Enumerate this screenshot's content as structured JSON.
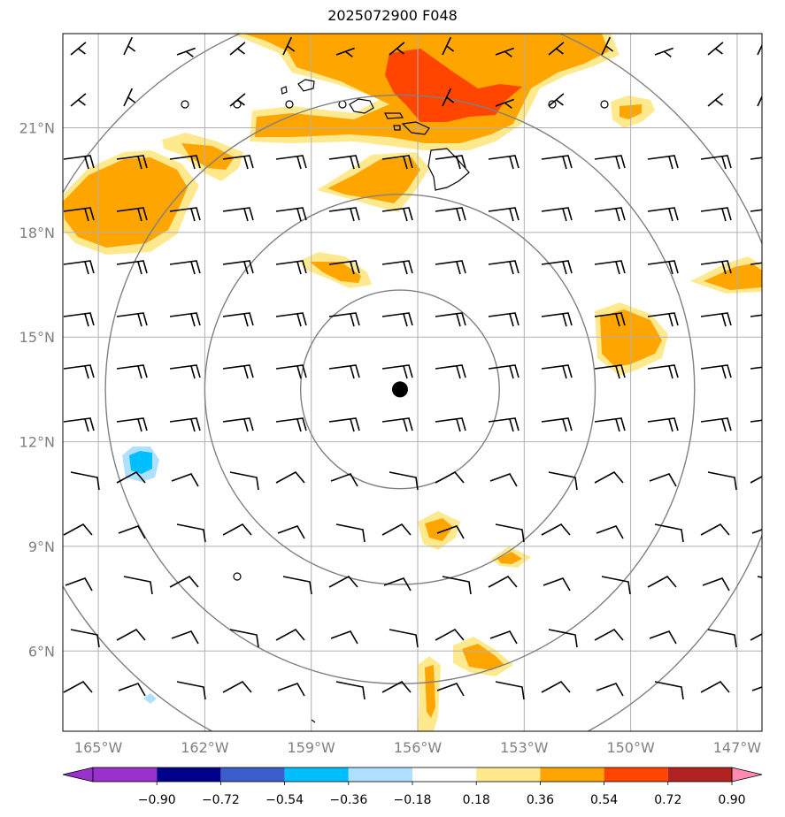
{
  "title": "2025072900 F048",
  "map": {
    "lon_range": [
      -166,
      -146.3
    ],
    "lat_range": [
      3.7,
      23.7
    ],
    "lon_ticks": [
      {
        "value": -165,
        "label": "165°W"
      },
      {
        "value": -162,
        "label": "162°W"
      },
      {
        "value": -159,
        "label": "159°W"
      },
      {
        "value": -156,
        "label": "156°W"
      },
      {
        "value": -153,
        "label": "153°W"
      },
      {
        "value": -150,
        "label": "150°W"
      },
      {
        "value": -147,
        "label": "147°W"
      }
    ],
    "lat_ticks": [
      {
        "value": 21,
        "label": "21°N"
      },
      {
        "value": 18,
        "label": "18°N"
      },
      {
        "value": 15,
        "label": "15°N"
      },
      {
        "value": 12,
        "label": "12°N"
      },
      {
        "value": 9,
        "label": "9°N"
      },
      {
        "value": 6,
        "label": "6°N"
      }
    ],
    "grid": true,
    "center_marker": {
      "lon": -156.5,
      "lat": 13.5
    },
    "range_rings_deg": [
      2.8,
      5.5,
      8.3,
      11.0
    ],
    "colors": {
      "level_0_18": "#ffe98f",
      "level_0_36": "#ffa500",
      "level_0_54": "#ff4500",
      "neg_0_18": "#b0e0ff",
      "neg_0_36": "#00bfff",
      "grid": "#b0b0b0",
      "rings": "#808080"
    }
  },
  "colorbar": {
    "labels": [
      "−0.90",
      "−0.72",
      "−0.54",
      "−0.36",
      "−0.18",
      "0.18",
      "0.36",
      "0.54",
      "0.72",
      "0.90"
    ],
    "colors": [
      "#9932cc",
      "#00008b",
      "#3a5fcd",
      "#00bfff",
      "#b0e0ff",
      "#ffffff",
      "#ffe98f",
      "#ffa500",
      "#ff4500",
      "#b22222",
      "#ff8cb0"
    ]
  }
}
